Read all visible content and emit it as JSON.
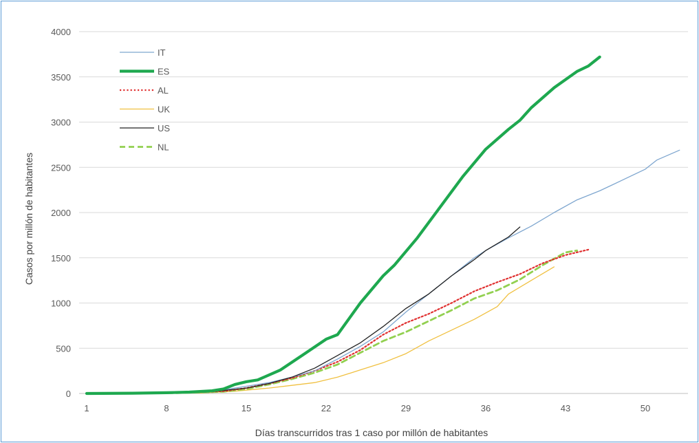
{
  "chart_data": {
    "type": "line",
    "title": "",
    "xlabel": "Días transcurridos tras 1 caso por millón de habitantes",
    "ylabel": "Casos por millón de habitantes",
    "xlim": [
      1,
      54
    ],
    "ylim": [
      0,
      4000
    ],
    "x_ticks": [
      1,
      8,
      15,
      22,
      29,
      36,
      43,
      50
    ],
    "y_ticks": [
      0,
      500,
      1000,
      1500,
      2000,
      2500,
      3000,
      3500,
      4000
    ],
    "grid": "horizontal",
    "legend_position": "top-left",
    "series": [
      {
        "name": "IT",
        "color": "#7ea6cf",
        "style": "solid-thin",
        "x": [
          1,
          5,
          9,
          11,
          13,
          15,
          17,
          19,
          21,
          23,
          25,
          27,
          29,
          31,
          33,
          35,
          36,
          38,
          40,
          42,
          44,
          46,
          48,
          50,
          51,
          53
        ],
        "y": [
          0,
          2,
          8,
          20,
          40,
          80,
          120,
          180,
          250,
          380,
          520,
          680,
          900,
          1100,
          1300,
          1500,
          1580,
          1720,
          1850,
          2000,
          2140,
          2240,
          2360,
          2480,
          2580,
          2690
        ]
      },
      {
        "name": "ES",
        "color": "#1ea84f",
        "style": "solid-thick",
        "x": [
          1,
          5,
          8,
          10,
          12,
          13,
          14,
          15,
          16,
          18,
          20,
          22,
          23,
          25,
          27,
          28,
          30,
          32,
          34,
          36,
          38,
          39,
          40,
          42,
          44,
          45,
          46
        ],
        "y": [
          0,
          3,
          8,
          15,
          30,
          50,
          100,
          130,
          150,
          260,
          430,
          600,
          650,
          1000,
          1300,
          1420,
          1720,
          2060,
          2400,
          2700,
          2920,
          3020,
          3160,
          3380,
          3560,
          3620,
          3720
        ]
      },
      {
        "name": "AL",
        "color": "#e03030",
        "style": "dotted",
        "x": [
          1,
          9,
          13,
          15,
          17,
          19,
          21,
          23,
          25,
          27,
          29,
          31,
          33,
          35,
          37,
          39,
          41,
          43,
          45
        ],
        "y": [
          0,
          5,
          25,
          60,
          110,
          170,
          250,
          350,
          480,
          650,
          780,
          880,
          1000,
          1130,
          1230,
          1320,
          1440,
          1530,
          1590
        ]
      },
      {
        "name": "UK",
        "color": "#f0c040",
        "style": "solid-thin",
        "x": [
          1,
          11,
          14,
          17,
          19,
          21,
          23,
          25,
          27,
          29,
          31,
          33,
          35,
          37,
          38,
          40,
          42
        ],
        "y": [
          0,
          5,
          25,
          60,
          90,
          120,
          180,
          260,
          340,
          440,
          580,
          700,
          820,
          960,
          1100,
          1250,
          1400
        ]
      },
      {
        "name": "US",
        "color": "#202020",
        "style": "solid-thin",
        "x": [
          1,
          9,
          12,
          15,
          17,
          19,
          21,
          23,
          25,
          27,
          29,
          31,
          33,
          35,
          36,
          38,
          39
        ],
        "y": [
          0,
          5,
          20,
          60,
          110,
          180,
          280,
          420,
          560,
          740,
          940,
          1100,
          1300,
          1480,
          1580,
          1730,
          1840
        ]
      },
      {
        "name": "NL",
        "color": "#92d050",
        "style": "dashed",
        "x": [
          1,
          9,
          13,
          15,
          17,
          19,
          21,
          23,
          25,
          27,
          29,
          31,
          33,
          35,
          37,
          39,
          41,
          43,
          44
        ],
        "y": [
          0,
          5,
          20,
          50,
          100,
          160,
          230,
          320,
          450,
          580,
          680,
          800,
          920,
          1050,
          1140,
          1260,
          1420,
          1560,
          1580
        ]
      }
    ]
  }
}
